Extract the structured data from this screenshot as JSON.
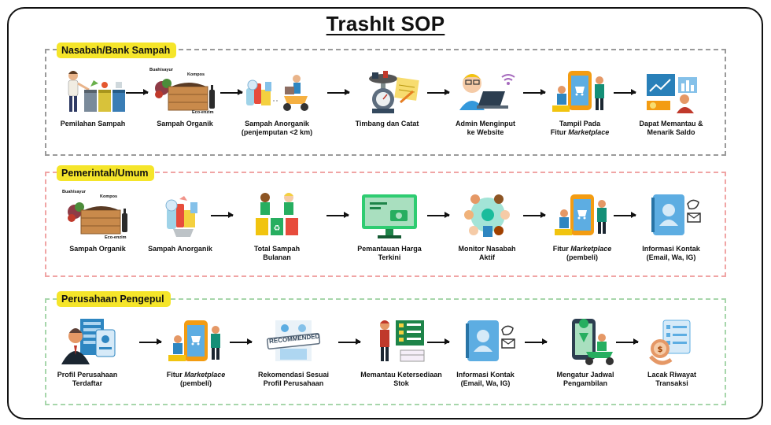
{
  "title": "TrashIt SOP",
  "sections": [
    {
      "label": "Nasabah/Bank Sampah",
      "steps": [
        {
          "label": "Pemilahan Sampah",
          "icon": "sorting-bins-icon"
        },
        {
          "label": "Sampah Organik",
          "icon": "compost-crate-icon",
          "tags": [
            "Buah/sayur",
            "Kompos",
            "Eco-enzim"
          ]
        },
        {
          "label": "Sampah Anorganik\n(penjemputan <2 km)",
          "icon": "delivery-scooter-icon"
        },
        {
          "label": "Timbang dan Catat",
          "icon": "scale-notepad-icon"
        },
        {
          "label": "Admin Menginput\nke Website",
          "icon": "admin-laptop-icon"
        },
        {
          "label_prefix": "Tampil Pada\nFitur ",
          "label_em": "Marketplace",
          "icon": "marketplace-phone-icon"
        },
        {
          "label": "Dapat Memantau &\nMenarik Saldo",
          "icon": "balance-dashboard-icon"
        }
      ]
    },
    {
      "label": "Pemerintah/Umum",
      "steps": [
        {
          "label": "Sampah Organik",
          "icon": "compost-crate-icon",
          "tags": [
            "Buah/sayur",
            "Kompos",
            "Eco-enzim"
          ]
        },
        {
          "label": "Sampah Anorganik",
          "icon": "plastic-waste-icon"
        },
        {
          "label": "Total Sampah\nBulanan",
          "icon": "people-recycle-bins-icon"
        },
        {
          "label": "Pemantauan Harga\nTerkini",
          "icon": "price-monitor-icon"
        },
        {
          "label": "Monitor Nasabah\nAktif",
          "icon": "customer-network-icon"
        },
        {
          "label_prefix": "Fitur ",
          "label_em": "Marketplace",
          "label_suffix": "\n(pembeli)",
          "icon": "marketplace-phone-icon"
        },
        {
          "label": "Informasi Kontak\n(Email, Wa, IG)",
          "icon": "contact-book-icon"
        }
      ]
    },
    {
      "label": "Perusahaan Pengepul",
      "steps": [
        {
          "label": "Profil Perusahaan\nTerdaftar",
          "icon": "company-profile-icon"
        },
        {
          "label_prefix": "Fitur ",
          "label_em": "Marketplace",
          "label_suffix": "\n(pembeli)",
          "icon": "marketplace-phone-icon"
        },
        {
          "label": "Rekomendasi Sesuai\nProfil Perusahaan",
          "icon": "recommended-stamp-icon",
          "stamp": "RECOMMENDED"
        },
        {
          "label": "Memantau Ketersediaan\nStok",
          "icon": "stock-board-icon"
        },
        {
          "label": "Informasi Kontak\n(Email, Wa, IG)",
          "icon": "contact-book-icon"
        },
        {
          "label": "Mengatur Jadwal\nPengambilan",
          "icon": "pickup-map-scooter-icon"
        },
        {
          "label": "Lacak Riwayat\nTransaksi",
          "icon": "transaction-history-icon"
        }
      ]
    }
  ],
  "colors": {
    "section1_border": "#9a9a9a",
    "section2_border": "#f0a5a5",
    "section3_border": "#a7d6ab",
    "label_bg": "#f5e52a"
  }
}
